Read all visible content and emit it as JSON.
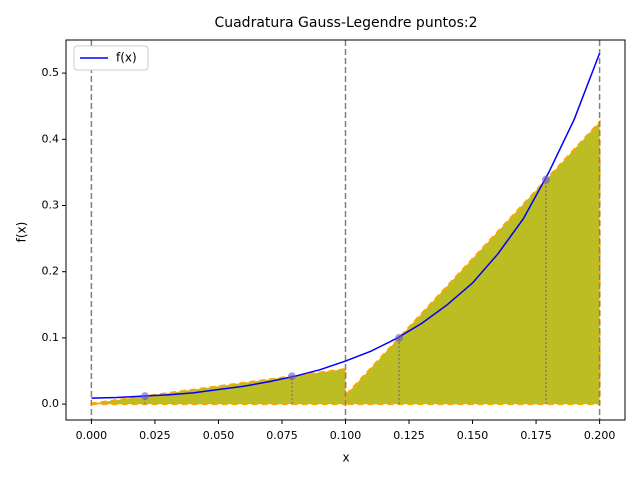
{
  "chart_data": {
    "type": "line",
    "title": "Cuadratura Gauss-Legendre puntos:2",
    "xlabel": "x",
    "ylabel": "f(x)",
    "x": [
      0,
      0.01,
      0.02,
      0.03,
      0.04,
      0.05,
      0.06,
      0.07,
      0.08,
      0.09,
      0.1,
      0.11,
      0.12,
      0.13,
      0.14,
      0.15,
      0.16,
      0.17,
      0.18,
      0.19,
      0.2
    ],
    "series": [
      {
        "name": "f(x)",
        "color": "#0000ff",
        "values": [
          0.009,
          0.01,
          0.012,
          0.014,
          0.017,
          0.022,
          0.027,
          0.034,
          0.042,
          0.052,
          0.065,
          0.08,
          0.099,
          0.122,
          0.15,
          0.183,
          0.227,
          0.28,
          0.35,
          0.43,
          0.53
        ]
      }
    ],
    "gauss_points": {
      "x": [
        0.0211,
        0.0789,
        0.1211,
        0.1789
      ],
      "values": [
        0.012,
        0.042,
        0.1,
        0.339
      ],
      "color": "#6a5acd"
    },
    "fills": [
      {
        "x": [
          0,
          0.1
        ],
        "values": [
          0.001,
          0.053
        ]
      },
      {
        "x": [
          0.1,
          0.2
        ],
        "values": [
          0.013,
          0.426
        ]
      }
    ],
    "fill_color": "#bcbd22",
    "fill_edge_color": "#ffa500",
    "boundaries": [
      0,
      0.1,
      0.2
    ],
    "xlim": [
      -0.01,
      0.21
    ],
    "ylim": [
      -0.024,
      0.55
    ],
    "xticks": [
      {
        "value": 0,
        "label": "0.000"
      },
      {
        "value": 0.025,
        "label": "0.025"
      },
      {
        "value": 0.05,
        "label": "0.050"
      },
      {
        "value": 0.075,
        "label": "0.075"
      },
      {
        "value": 0.1,
        "label": "0.100"
      },
      {
        "value": 0.125,
        "label": "0.125"
      },
      {
        "value": 0.15,
        "label": "0.150"
      },
      {
        "value": 0.175,
        "label": "0.175"
      },
      {
        "value": 0.2,
        "label": "0.200"
      }
    ],
    "yticks": [
      {
        "value": 0,
        "label": "0.0"
      },
      0.1,
      0.2,
      0.3,
      0.4,
      0.5
    ],
    "legend": "upper left"
  }
}
